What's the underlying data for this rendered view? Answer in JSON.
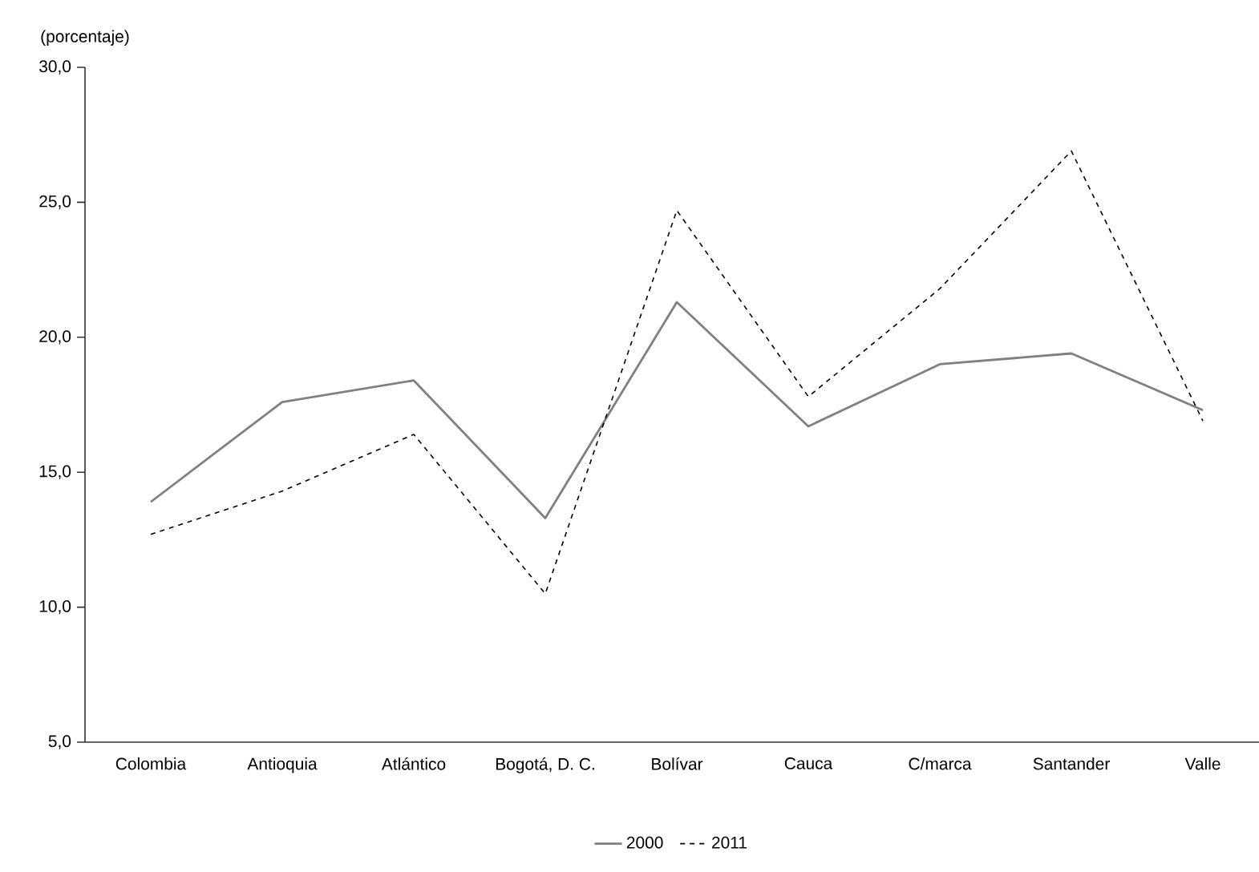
{
  "chart_data": {
    "type": "line",
    "ylabel": "(porcentaje)",
    "categories": [
      "Colombia",
      "Antioquia",
      "Atlántico",
      "Bogotá, D. C.",
      "Bolívar",
      "Cauca",
      "C/marca",
      "Santander",
      "Valle"
    ],
    "series": [
      {
        "name": "2000",
        "color": "#808080",
        "line_style": "solid",
        "values": [
          13.9,
          17.6,
          18.4,
          13.3,
          21.3,
          16.7,
          19.0,
          19.4,
          17.3
        ]
      },
      {
        "name": "2011",
        "color": "#000000",
        "line_style": "dashed",
        "values": [
          12.7,
          14.3,
          16.4,
          10.5,
          24.7,
          17.8,
          21.8,
          26.9,
          16.9
        ]
      }
    ],
    "ylim": [
      5,
      30
    ],
    "yticks": [
      {
        "value": 5,
        "label": "5,0"
      },
      {
        "value": 10,
        "label": "10,0"
      },
      {
        "value": 15,
        "label": "15,0"
      },
      {
        "value": 20,
        "label": "20,0"
      },
      {
        "value": 25,
        "label": "25,0"
      },
      {
        "value": 30,
        "label": "30,0"
      }
    ],
    "grid": false,
    "legend": "bottom",
    "marker": "none"
  }
}
